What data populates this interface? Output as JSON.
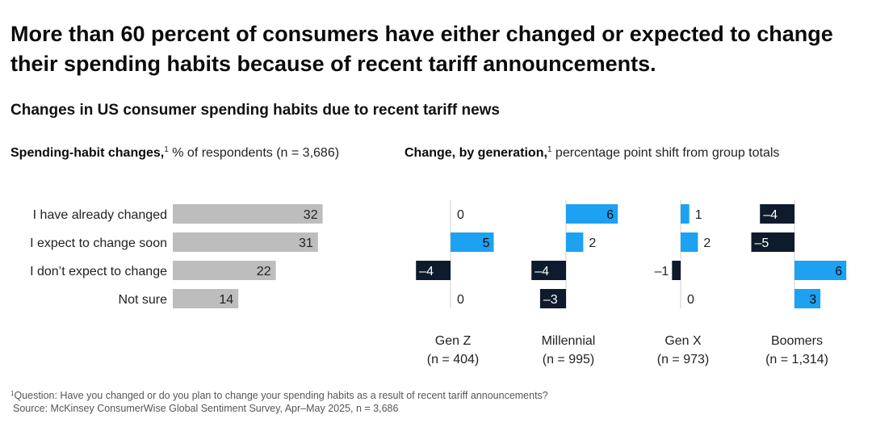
{
  "headline": "More than 60 percent of consumers have either changed or expected to change their spending habits because of recent tariff announcements.",
  "subtitle": "Changes in US consumer spending habits due to recent tariff news",
  "left_panel": {
    "title_bold": "Spending-habit changes,",
    "sup": "1",
    "title_rest": " % of respondents (n = 3,686)"
  },
  "right_panel": {
    "title_bold": "Change, by generation,",
    "sup": "1",
    "title_rest": " percentage point shift from group totals"
  },
  "footnote": {
    "sup": "1",
    "question": "Question: Have you changed or do you plan to change your spending habits as a result of recent tariff announcements?",
    "source": "Source: McKinsey ConsumerWise Global Sentiment Survey, Apr–May 2025, n = 3,686"
  },
  "colors": {
    "gray": "#bdbdbd",
    "blue": "#1da1f2",
    "navy": "#0e1b2c",
    "axis": "#cfcfcf"
  },
  "chart_data": [
    {
      "type": "bar",
      "orientation": "horizontal",
      "title": "Spending-habit changes, % of respondents (n = 3,686)",
      "categories": [
        "I have already changed",
        "I expect to change soon",
        "I don’t expect to change",
        "Not sure"
      ],
      "values": [
        32,
        31,
        22,
        14
      ],
      "value_labels": [
        "32",
        "31",
        "22",
        "14"
      ]
    },
    {
      "type": "bar",
      "orientation": "horizontal",
      "title": "Change, by generation, percentage point shift from group totals",
      "categories": [
        "I have already changed",
        "I expect to change soon",
        "I don’t expect to change",
        "Not sure"
      ],
      "series": [
        {
          "name": "Gen Z",
          "n_label": "(n = 404)",
          "values": [
            0,
            5,
            -4,
            0
          ],
          "value_labels": [
            "0",
            "5",
            "–4",
            "0"
          ]
        },
        {
          "name": "Millennial",
          "n_label": "(n = 995)",
          "values": [
            6,
            2,
            -4,
            -3
          ],
          "value_labels": [
            "6",
            "2",
            "–4",
            "–3"
          ]
        },
        {
          "name": "Gen X",
          "n_label": "(n = 973)",
          "values": [
            1,
            2,
            -1,
            0
          ],
          "value_labels": [
            "1",
            "2",
            "–1",
            "0"
          ]
        },
        {
          "name": "Boomers",
          "n_label": "(n = 1,314)",
          "values": [
            -4,
            -5,
            6,
            3
          ],
          "value_labels": [
            "–4",
            "–5",
            "6",
            "3"
          ]
        }
      ]
    }
  ]
}
